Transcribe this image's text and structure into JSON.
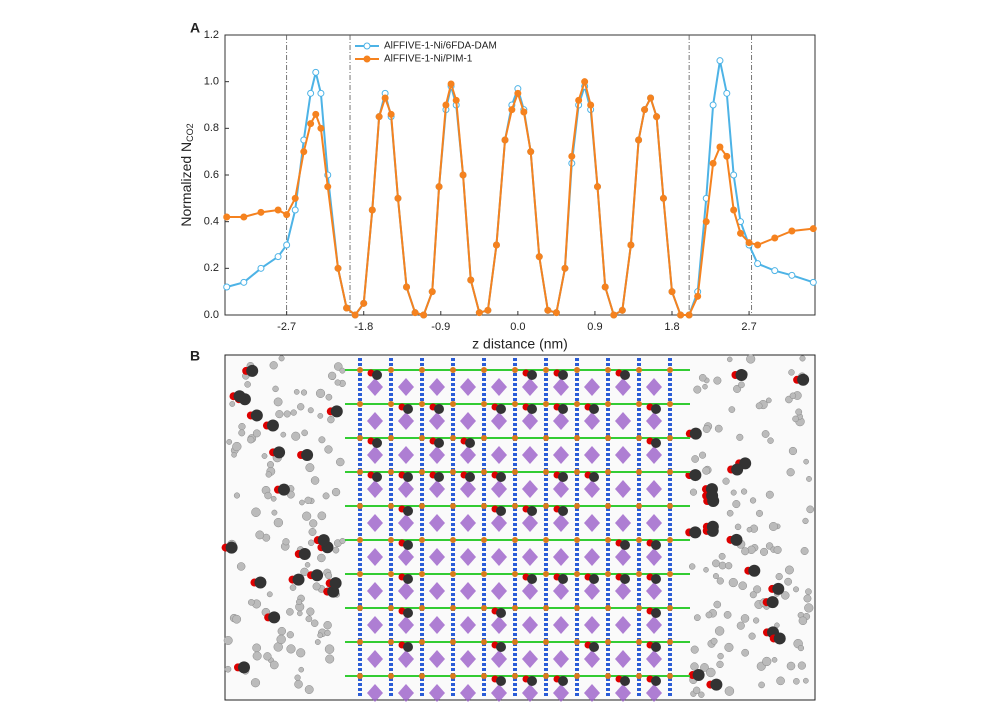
{
  "panels": {
    "a_label": "A",
    "b_label": "B"
  },
  "chart_data": {
    "type": "line",
    "xlabel": "z distance (nm)",
    "ylabel": "Normalized N",
    "ylabel_subscript": "CO2",
    "x": [
      -3.4,
      -3.2,
      -3.0,
      -2.8,
      -2.7,
      -2.6,
      -2.5,
      -2.42,
      -2.36,
      -2.3,
      -2.22,
      -2.1,
      -2.0,
      -1.9,
      -1.8,
      -1.7,
      -1.62,
      -1.55,
      -1.48,
      -1.4,
      -1.3,
      -1.2,
      -1.1,
      -1.0,
      -0.92,
      -0.84,
      -0.78,
      -0.72,
      -0.64,
      -0.55,
      -0.45,
      -0.35,
      -0.25,
      -0.15,
      -0.07,
      0,
      0.07,
      0.15,
      0.25,
      0.35,
      0.45,
      0.55,
      0.63,
      0.71,
      0.78,
      0.85,
      0.93,
      1.02,
      1.12,
      1.22,
      1.32,
      1.41,
      1.48,
      1.55,
      1.62,
      1.7,
      1.8,
      1.9,
      2.0,
      2.1,
      2.2,
      2.28,
      2.36,
      2.44,
      2.52,
      2.6,
      2.7,
      2.8,
      3.0,
      3.2,
      3.45
    ],
    "series": [
      {
        "name": "AlFFIVE-1-Ni/6FDA-DAM",
        "color": "#4db3e6",
        "marker": "open",
        "values": [
          0.12,
          0.14,
          0.2,
          0.25,
          0.3,
          0.45,
          0.75,
          0.95,
          1.04,
          0.95,
          0.6,
          0.2,
          0.03,
          0,
          0.05,
          0.45,
          0.85,
          0.95,
          0.85,
          0.5,
          0.12,
          0.01,
          0,
          0.1,
          0.55,
          0.88,
          0.98,
          0.9,
          0.6,
          0.15,
          0.01,
          0.02,
          0.3,
          0.75,
          0.9,
          0.97,
          0.88,
          0.7,
          0.25,
          0.02,
          0.01,
          0.2,
          0.65,
          0.9,
          0.98,
          0.88,
          0.55,
          0.12,
          0,
          0.02,
          0.3,
          0.75,
          0.88,
          0.93,
          0.85,
          0.5,
          0.1,
          0,
          0,
          0.1,
          0.5,
          0.9,
          1.09,
          0.95,
          0.6,
          0.4,
          0.3,
          0.22,
          0.19,
          0.17,
          0.14
        ]
      },
      {
        "name": "AlFFIVE-1-Ni/PIM-1",
        "color": "#f5821f",
        "marker": "filled",
        "values": [
          0.42,
          0.42,
          0.44,
          0.45,
          0.43,
          0.5,
          0.7,
          0.82,
          0.86,
          0.8,
          0.55,
          0.2,
          0.03,
          0,
          0.05,
          0.45,
          0.85,
          0.93,
          0.86,
          0.5,
          0.12,
          0.01,
          0,
          0.1,
          0.55,
          0.9,
          0.99,
          0.92,
          0.6,
          0.15,
          0.01,
          0.02,
          0.3,
          0.75,
          0.88,
          0.95,
          0.87,
          0.7,
          0.25,
          0.02,
          0.01,
          0.2,
          0.68,
          0.92,
          1.0,
          0.9,
          0.55,
          0.12,
          0,
          0.02,
          0.3,
          0.75,
          0.88,
          0.93,
          0.85,
          0.5,
          0.1,
          0,
          0,
          0.08,
          0.4,
          0.65,
          0.72,
          0.68,
          0.45,
          0.35,
          0.31,
          0.3,
          0.33,
          0.36,
          0.37
        ]
      }
    ],
    "xlim": [
      -3.42,
      3.47
    ],
    "ylim": [
      0,
      1.2
    ],
    "xticks": [
      -2.7,
      -1.8,
      -0.9,
      {
        "value": 0,
        "label": "0.0"
      },
      0.9,
      1.8,
      2.7
    ],
    "yticks": [
      {
        "value": 0,
        "label": "0.0"
      },
      0.2,
      0.4,
      0.6,
      0.8,
      {
        "value": 1,
        "label": "1.0"
      },
      1.2
    ],
    "vlines": [
      -2.7,
      -1.96,
      2.0,
      2.73
    ],
    "grid": false,
    "legend": "top-left"
  }
}
